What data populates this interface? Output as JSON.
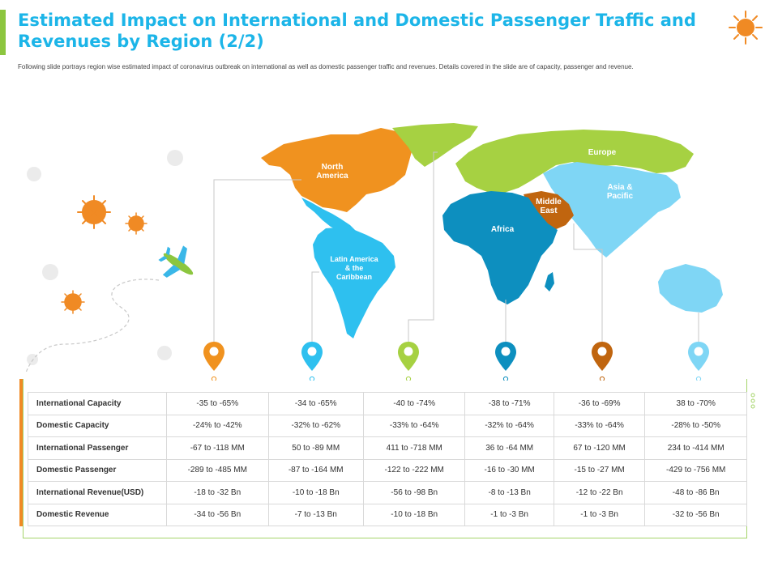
{
  "header": {
    "title": "Estimated Impact on International and Domestic Passenger Traffic and Revenues by Region (2/2)",
    "subtitle": "Following slide portrays region wise estimated impact of coronavirus outbreak on international as well as domestic passenger traffic and revenues. Details covered in the slide are of capacity, passenger and revenue."
  },
  "regions": {
    "north_america": "North\nAmerica",
    "europe": "Europe",
    "asia_pacific": "Asia &\nPacific",
    "middle_east": "Middle\nEast",
    "africa": "Africa",
    "latin_america": "Latin America\n& the\nCaribbean"
  },
  "colors": {
    "north_america": "#f0921f",
    "latin_america": "#2ec0ef",
    "europe": "#a6d142",
    "africa": "#0d8fbf",
    "middle_east": "#c0650f",
    "asia_pacific": "#7fd6f5",
    "title": "#1cb5e8"
  },
  "table": {
    "rows": [
      {
        "label": "International Capacity",
        "values": [
          "-35 to -65%",
          "-34 to -65%",
          "-40 to -74%",
          "-38 to -71%",
          "-36 to -69%",
          "38 to -70%"
        ]
      },
      {
        "label": "Domestic Capacity",
        "values": [
          "-24% to -42%",
          "-32% to -62%",
          "-33% to -64%",
          "-32% to -64%",
          "-33% to -64%",
          "-28% to -50%"
        ]
      },
      {
        "label": "International Passenger",
        "values": [
          "-67 to -118 MM",
          "50 to -89 MM",
          "411 to -718 MM",
          "36 to -64 MM",
          "67 to -120 MM",
          "234 to -414 MM"
        ]
      },
      {
        "label": "Domestic Passenger",
        "values": [
          "-289 to -485 MM",
          "-87 to -164 MM",
          "-122 to -222 MM",
          "-16 to -30 MM",
          "-15 to -27 MM",
          "-429 to -756 MM"
        ]
      },
      {
        "label": "International Revenue(USD)",
        "values": [
          "-18 to -32 Bn",
          "-10 to -18 Bn",
          "-56 to -98 Bn",
          "-8 to -13 Bn",
          "-12 to -22 Bn",
          "-48 to -86 Bn"
        ]
      },
      {
        "label": "Domestic Revenue",
        "values": [
          "-34 to -56 Bn",
          "-7 to -13 Bn",
          "-10  to -18 Bn",
          "-1 to -3 Bn",
          "-1 to -3 Bn",
          "-32  to -56 Bn"
        ]
      }
    ]
  }
}
